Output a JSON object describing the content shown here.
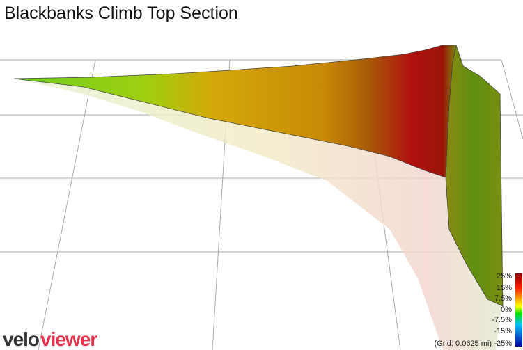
{
  "title": "Blackbanks Climb Top Section",
  "legend": {
    "labels": [
      "25%",
      "15%",
      "7.5%",
      "0%",
      "-7.5%",
      "-15%",
      "-25%"
    ],
    "grid_note": "(Grid: 0.0625 mi)"
  },
  "logo": {
    "part1": "velo",
    "part2": "viewer"
  }
}
